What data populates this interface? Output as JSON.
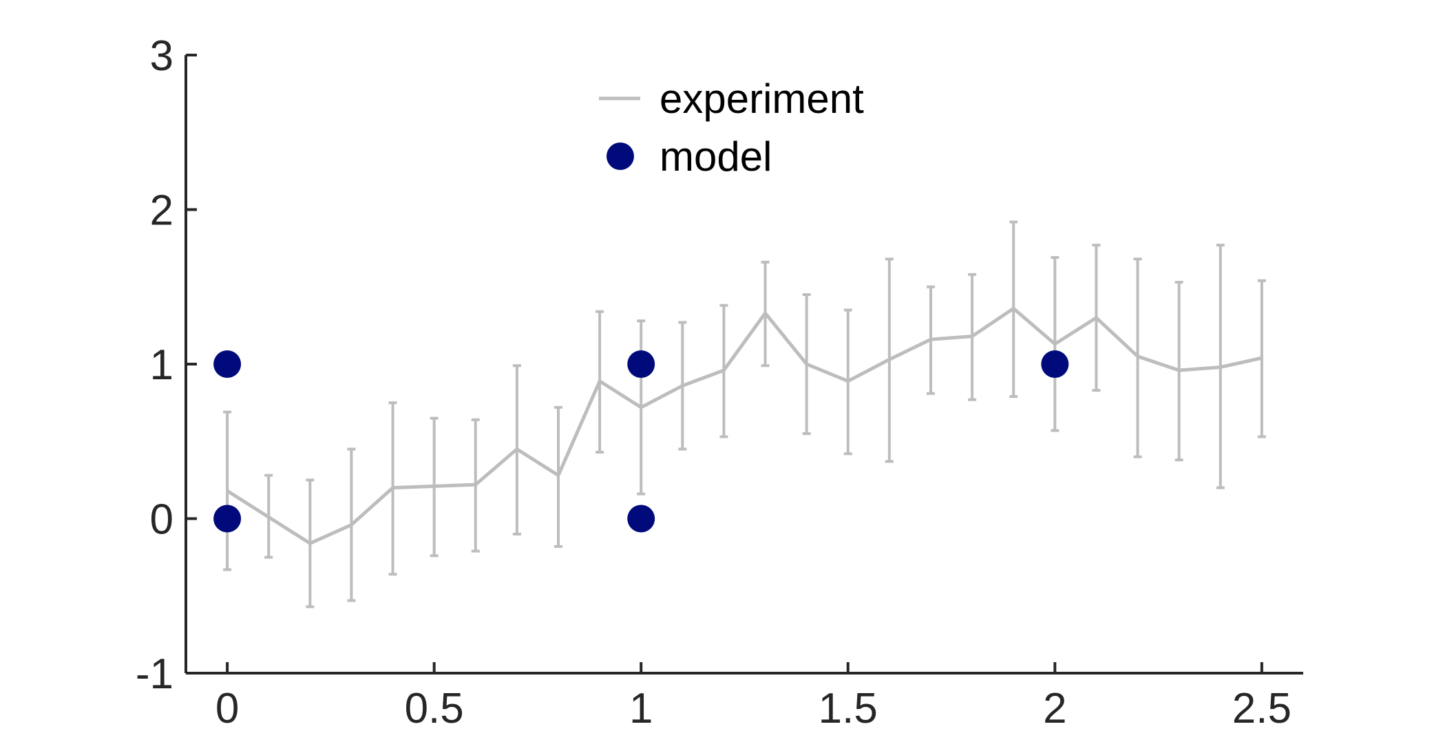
{
  "chart_data": {
    "type": "line",
    "title": "",
    "xlabel": "",
    "ylabel": "",
    "xlim": [
      -0.1,
      2.6
    ],
    "ylim": [
      -1,
      3
    ],
    "grid": false,
    "legend_position": "top-center",
    "x_ticks": [
      {
        "value": 0,
        "label": "0"
      },
      {
        "value": 0.5,
        "label": "0.5"
      },
      {
        "value": 1,
        "label": "1"
      },
      {
        "value": 1.5,
        "label": "1.5"
      },
      {
        "value": 2,
        "label": "2"
      },
      {
        "value": 2.5,
        "label": "2.5"
      }
    ],
    "y_ticks": [
      {
        "value": -1,
        "label": "-1"
      },
      {
        "value": 0,
        "label": "0"
      },
      {
        "value": 1,
        "label": "1"
      },
      {
        "value": 2,
        "label": "2"
      },
      {
        "value": 3,
        "label": "3"
      }
    ],
    "series": [
      {
        "name": "experiment",
        "kind": "line-errorbar",
        "color": "#bdbdbd",
        "x": [
          0,
          0.1,
          0.2,
          0.3,
          0.4,
          0.5,
          0.6,
          0.7,
          0.8,
          0.9,
          1.0,
          1.1,
          1.2,
          1.3,
          1.4,
          1.5,
          1.6,
          1.7,
          1.8,
          1.9,
          2.0,
          2.1,
          2.2,
          2.3,
          2.4,
          2.5
        ],
        "y": [
          0.18,
          0.01,
          -0.16,
          -0.04,
          0.2,
          0.21,
          0.22,
          0.45,
          0.28,
          0.89,
          0.72,
          0.86,
          0.96,
          1.33,
          1.0,
          0.89,
          1.03,
          1.16,
          1.18,
          1.36,
          1.13,
          1.3,
          1.05,
          0.96,
          0.98,
          1.04
        ],
        "lower": [
          -0.33,
          -0.25,
          -0.57,
          -0.53,
          -0.36,
          -0.24,
          -0.21,
          -0.1,
          -0.18,
          0.43,
          0.16,
          0.45,
          0.53,
          0.99,
          0.55,
          0.42,
          0.37,
          0.81,
          0.77,
          0.79,
          0.57,
          0.83,
          0.4,
          0.38,
          0.2,
          0.53
        ],
        "upper": [
          0.69,
          0.28,
          0.25,
          0.45,
          0.75,
          0.65,
          0.64,
          0.99,
          0.72,
          1.34,
          1.28,
          1.27,
          1.38,
          1.66,
          1.45,
          1.35,
          1.68,
          1.5,
          1.58,
          1.92,
          1.69,
          1.77,
          1.68,
          1.53,
          1.77,
          1.54
        ]
      },
      {
        "name": "model",
        "kind": "scatter",
        "color": "#000a7a",
        "x": [
          0,
          0,
          1,
          1,
          2
        ],
        "y": [
          1,
          0,
          1,
          0,
          1
        ]
      }
    ]
  }
}
